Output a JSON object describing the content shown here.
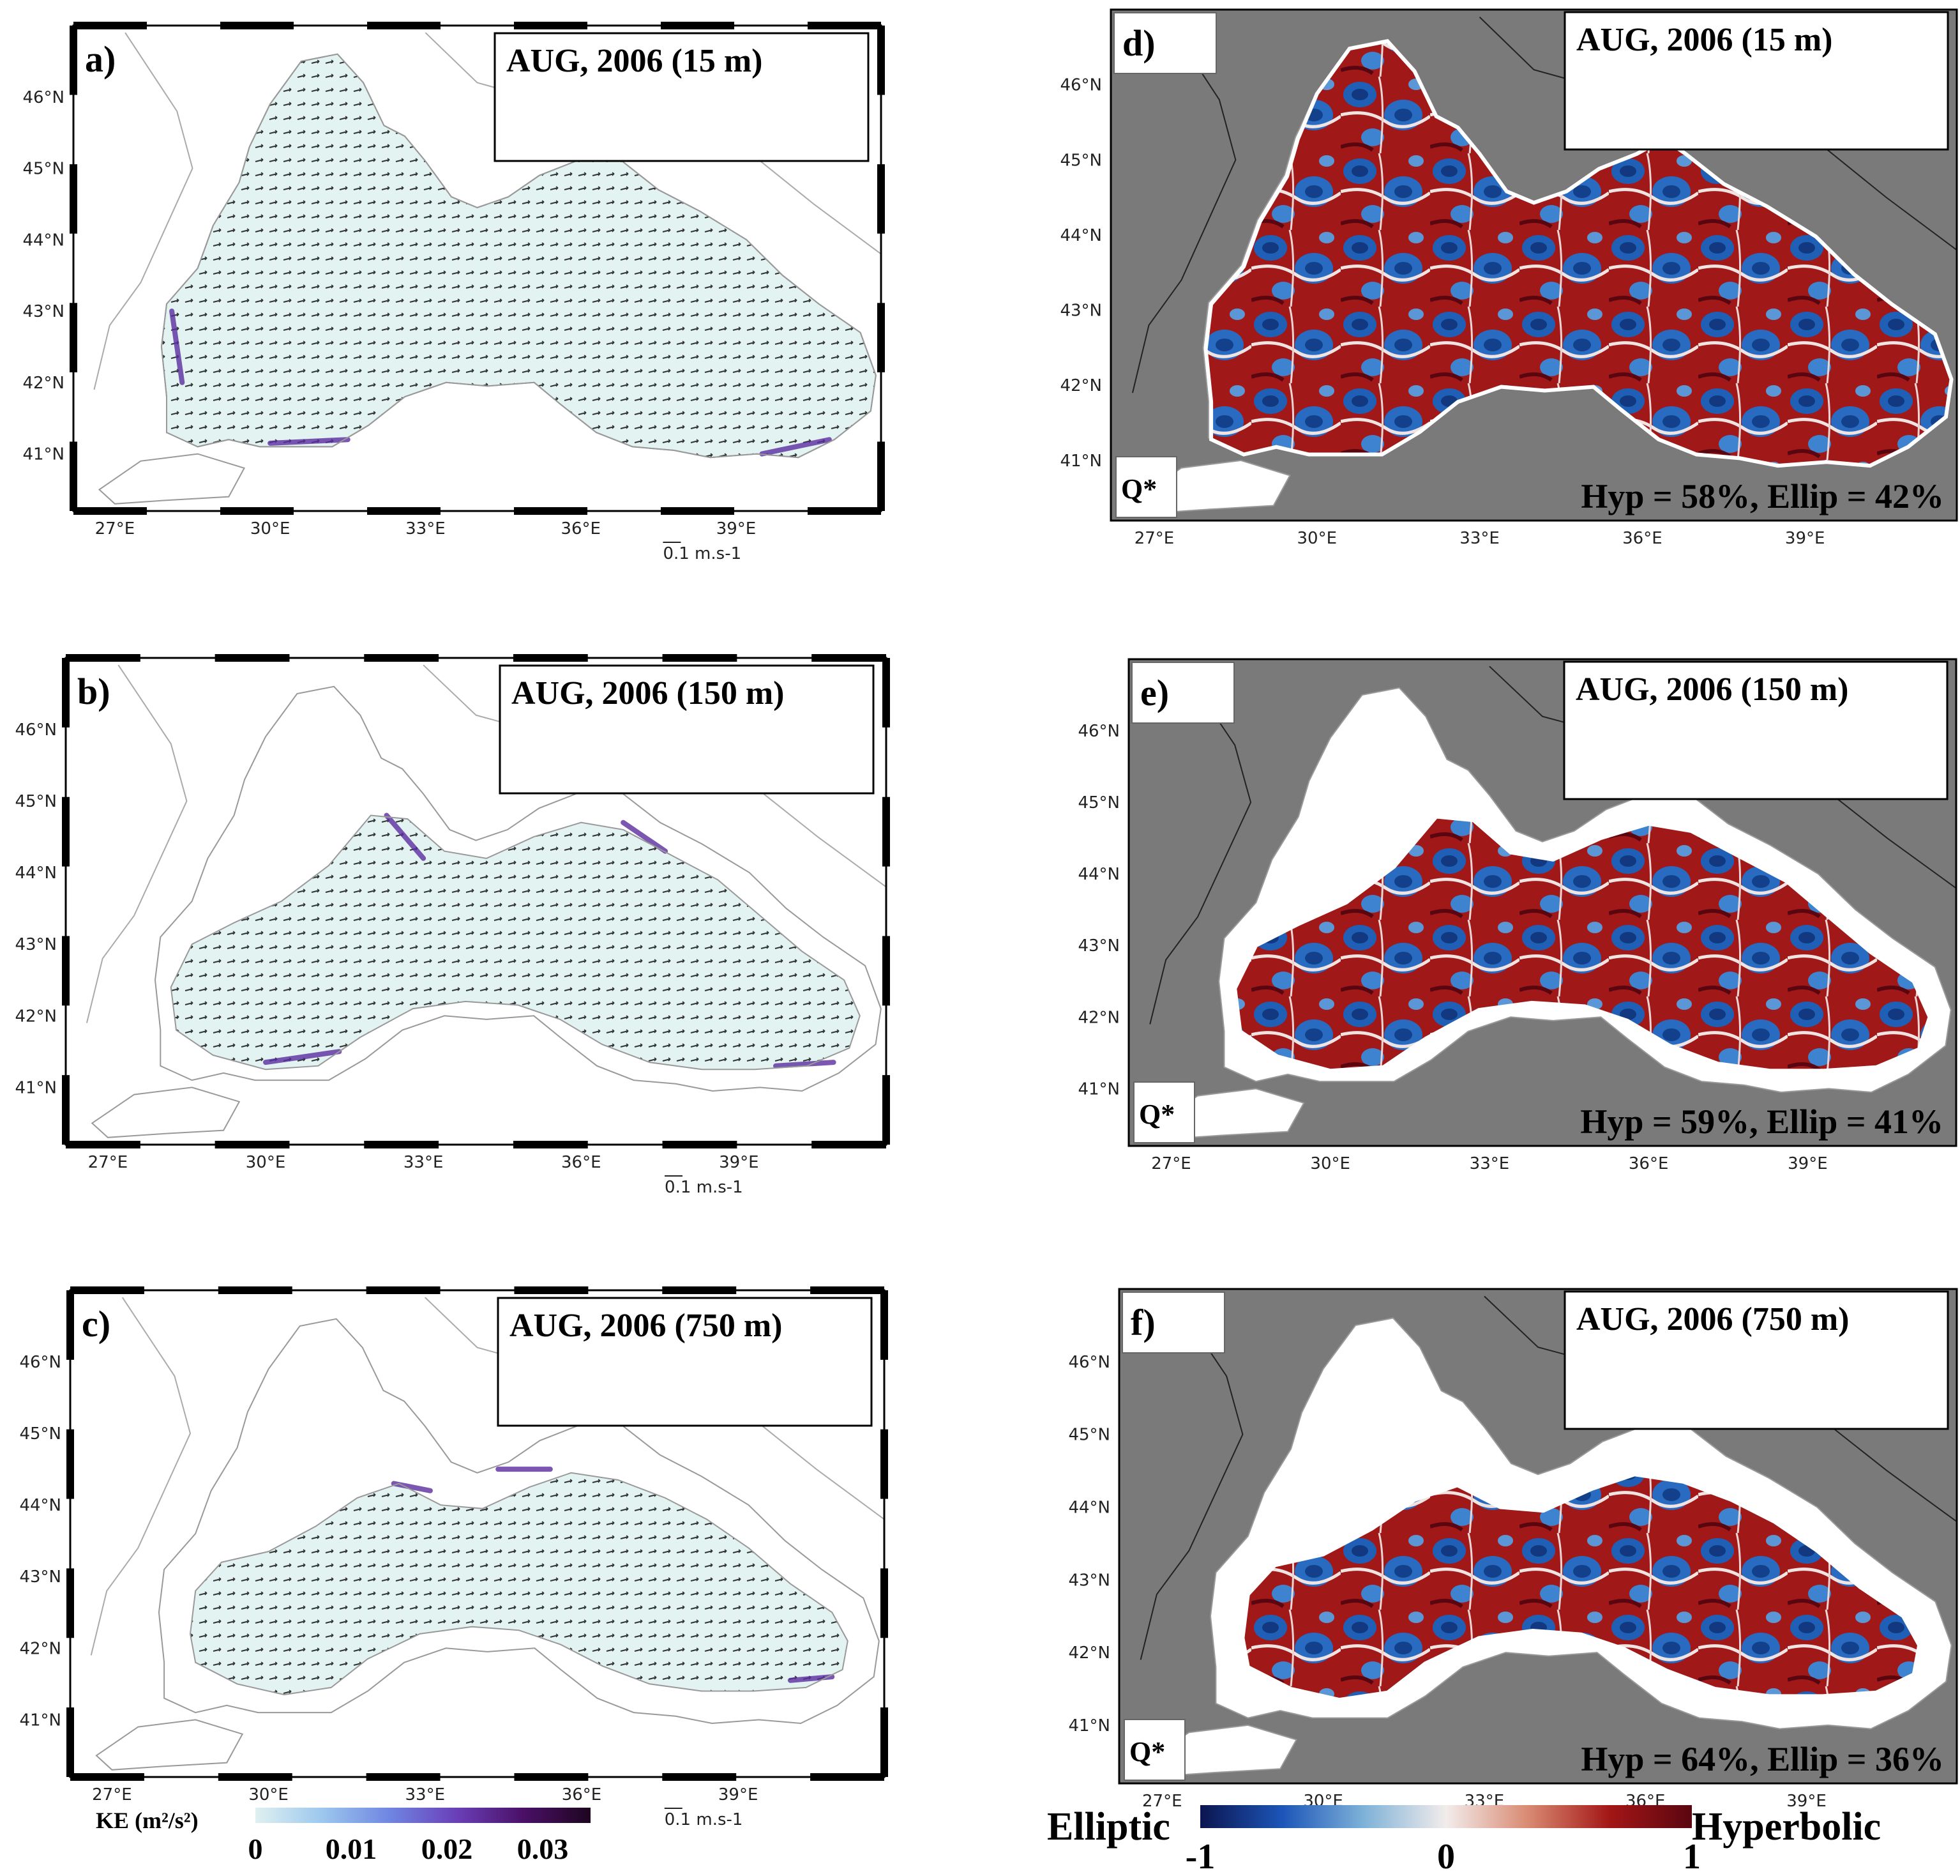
{
  "chart_data": [
    {
      "type": "vector-field",
      "panel": "a)",
      "title": "AUG, 2006 (15 m)",
      "x_ticks": [
        "27°E",
        "30°E",
        "33°E",
        "36°E",
        "39°E"
      ],
      "y_ticks": [
        "41°N",
        "42°N",
        "43°N",
        "44°N",
        "45°N",
        "46°N"
      ],
      "xlim": [
        26.2,
        41.8
      ],
      "ylim": [
        40.2,
        47.0
      ],
      "vector_scale": "0.1 m.s-1",
      "colorbar": "KE (m²/s²)"
    },
    {
      "type": "vector-field",
      "panel": "b)",
      "title": "AUG, 2006 (150 m)",
      "x_ticks": [
        "27°E",
        "30°E",
        "33°E",
        "36°E",
        "39°E"
      ],
      "y_ticks": [
        "41°N",
        "42°N",
        "43°N",
        "44°N",
        "45°N",
        "46°N"
      ],
      "xlim": [
        26.2,
        41.8
      ],
      "ylim": [
        40.2,
        47.0
      ],
      "vector_scale": "0.1 m.s-1",
      "colorbar": "KE (m²/s²)"
    },
    {
      "type": "vector-field",
      "panel": "c)",
      "title": "AUG, 2006 (750 m)",
      "x_ticks": [
        "27°E",
        "30°E",
        "33°E",
        "36°E",
        "39°E"
      ],
      "y_ticks": [
        "41°N",
        "42°N",
        "43°N",
        "44°N",
        "45°N",
        "46°N"
      ],
      "xlim": [
        26.2,
        41.8
      ],
      "ylim": [
        40.2,
        47.0
      ],
      "vector_scale": "0.1 m.s-1",
      "colorbar": "KE (m²/s²)"
    },
    {
      "type": "heatmap",
      "panel": "d)",
      "title": "AUG, 2006 (15 m)",
      "field": "Q*",
      "hyperbolic_percent": 58,
      "elliptic_percent": 42,
      "stat_text": "Hyp = 58%, Ellip = 42%",
      "x_ticks": [
        "27°E",
        "30°E",
        "33°E",
        "36°E",
        "39°E"
      ],
      "y_ticks": [
        "41°N",
        "42°N",
        "43°N",
        "44°N",
        "45°N",
        "46°N"
      ],
      "xlim": [
        26.2,
        41.8
      ],
      "ylim": [
        40.2,
        47.0
      ]
    },
    {
      "type": "heatmap",
      "panel": "e)",
      "title": "AUG, 2006 (150 m)",
      "field": "Q*",
      "hyperbolic_percent": 59,
      "elliptic_percent": 41,
      "stat_text": "Hyp = 59%, Ellip = 41%",
      "x_ticks": [
        "27°E",
        "30°E",
        "33°E",
        "36°E",
        "39°E"
      ],
      "y_ticks": [
        "41°N",
        "42°N",
        "43°N",
        "44°N",
        "45°N",
        "46°N"
      ],
      "xlim": [
        26.2,
        41.8
      ],
      "ylim": [
        40.2,
        47.0
      ]
    },
    {
      "type": "heatmap",
      "panel": "f)",
      "title": "AUG, 2006 (750 m)",
      "field": "Q*",
      "hyperbolic_percent": 64,
      "elliptic_percent": 36,
      "stat_text": "Hyp = 64%, Ellip = 36%",
      "x_ticks": [
        "27°E",
        "30°E",
        "33°E",
        "36°E",
        "39°E"
      ],
      "y_ticks": [
        "41°N",
        "42°N",
        "43°N",
        "44°N",
        "45°N",
        "46°N"
      ],
      "xlim": [
        26.2,
        41.8
      ],
      "ylim": [
        40.2,
        47.0
      ]
    }
  ],
  "ke_colorbar": {
    "label": "KE (m²/s²)",
    "ticks": [
      0,
      0.01,
      0.02,
      0.03
    ],
    "tick_labels": [
      "0",
      "0.01",
      "0.02",
      "0.03"
    ],
    "range": [
      0,
      0.035
    ],
    "colors": [
      "#dff1f0",
      "#9cc7ee",
      "#6f86e2",
      "#6a3fb8",
      "#4a1066",
      "#1e0520"
    ]
  },
  "q_colorbar": {
    "left_label": "Elliptic",
    "right_label": "Hyperbolic",
    "ticks": [
      -1,
      0,
      1
    ],
    "tick_labels": [
      "-1",
      "0",
      "1"
    ],
    "range": [
      -1,
      1
    ],
    "colors": [
      "#0c1550",
      "#1c55b8",
      "#7fb2d8",
      "#f2eceb",
      "#d98a72",
      "#a31616",
      "#5a0610"
    ]
  },
  "colors": {
    "land_gray": "#7a7a7a",
    "sea_light": "#e3f3f2",
    "coast_line": "#999999",
    "hyperbolic_red": "#a51a1a",
    "elliptic_blue": "#1f5fb5"
  }
}
